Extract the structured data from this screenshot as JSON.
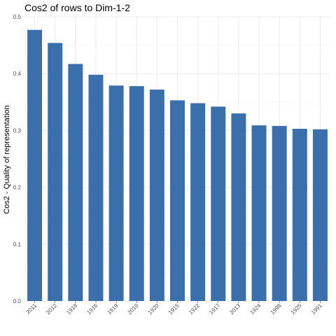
{
  "chart_data": {
    "type": "bar",
    "title": "Cos2 of rows to Dim-1-2",
    "xlabel": "",
    "ylabel": "Cos2 - Quality of representation",
    "categories": [
      "2011",
      "2012",
      "1918",
      "1916",
      "1919",
      "2010",
      "1920",
      "1915",
      "1922",
      "1917",
      "2013",
      "1924",
      "1998",
      "1925",
      "1991"
    ],
    "values": [
      0.477,
      0.454,
      0.417,
      0.398,
      0.379,
      0.378,
      0.372,
      0.353,
      0.348,
      0.342,
      0.33,
      0.309,
      0.308,
      0.303,
      0.302
    ],
    "ylim": [
      0,
      0.5
    ],
    "yticks": [
      "0.0",
      "0.1",
      "0.2",
      "0.3",
      "0.4",
      "0.5"
    ],
    "bar_color": "#3a6fab",
    "grid": true,
    "legend": "none"
  }
}
